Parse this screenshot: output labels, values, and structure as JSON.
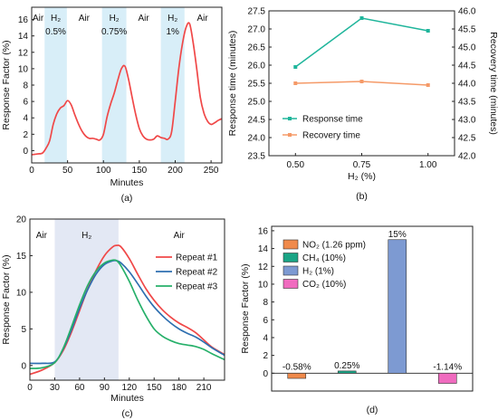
{
  "colors": {
    "highlight_a": "#d8eef8",
    "highlight_c": "#e3e8f4",
    "red": "#f04848",
    "teal": "#1fb59b",
    "orange": "#f59a68",
    "blue": "#2e6fb0",
    "green": "#27b06a"
  },
  "chart_data": [
    {
      "id": "a",
      "type": "line",
      "caption": "(a)",
      "xlabel": "Minutes",
      "ylabel": "Response Factor (%)",
      "xlim": [
        0,
        265
      ],
      "ylim": [
        -1.5,
        17.5
      ],
      "xticks": [
        0,
        50,
        100,
        150,
        200,
        250
      ],
      "yticks": [
        0,
        2,
        4,
        6,
        8,
        10,
        12,
        14,
        16
      ],
      "bands": [
        {
          "x0": 18,
          "x1": 49,
          "label": "H₂",
          "sublabel": "0.5%"
        },
        {
          "x0": 98,
          "x1": 132,
          "label": "H₂",
          "sublabel": "0.75%"
        },
        {
          "x0": 180,
          "x1": 213,
          "label": "H₂",
          "sublabel": "1%"
        }
      ],
      "air_labels": [
        {
          "x": 9,
          "label": "Air"
        },
        {
          "x": 73,
          "label": "Air"
        },
        {
          "x": 156,
          "label": "Air"
        },
        {
          "x": 238,
          "label": "Air"
        }
      ],
      "series": [
        {
          "color": "#f04848",
          "x": [
            0,
            8,
            15,
            20,
            25,
            30,
            35,
            40,
            45,
            50,
            55,
            60,
            65,
            70,
            75,
            80,
            85,
            90,
            95,
            100,
            105,
            110,
            115,
            120,
            125,
            130,
            135,
            140,
            145,
            150,
            155,
            160,
            165,
            170,
            175,
            180,
            185,
            190,
            195,
            200,
            205,
            210,
            215,
            220,
            225,
            230,
            235,
            240,
            245,
            250,
            255,
            260,
            265
          ],
          "values": [
            -0.5,
            -0.4,
            -0.3,
            0.3,
            1.2,
            3.2,
            4.5,
            5.2,
            5.5,
            6.1,
            5.6,
            4.4,
            3.3,
            2.4,
            1.8,
            1.5,
            1.5,
            1.4,
            1.3,
            2.0,
            4.1,
            5.7,
            7.0,
            8.6,
            10.0,
            10.3,
            8.7,
            6.5,
            4.4,
            2.7,
            1.8,
            1.4,
            1.3,
            1.4,
            1.8,
            1.6,
            1.5,
            1.4,
            2.3,
            6.0,
            10.0,
            13.0,
            15.0,
            15.5,
            13.2,
            10.0,
            6.5,
            4.6,
            3.6,
            3.2,
            3.4,
            3.7,
            3.9
          ]
        }
      ]
    },
    {
      "id": "b",
      "type": "line",
      "caption": "(b)",
      "xlabel": "H₂ (%)",
      "ylabel": "Response time (minutes)",
      "ylabel_right": "Recovery time (minutes)",
      "xlim": [
        0.4,
        1.1
      ],
      "ylim": [
        23.5,
        27.5
      ],
      "ylim_right": [
        42.0,
        46.0
      ],
      "xticks": [
        0.5,
        0.75,
        1.0
      ],
      "xtick_labels": [
        "0.50",
        "0.75",
        "1.00"
      ],
      "yticks": [
        23.5,
        24.0,
        24.5,
        25.0,
        25.5,
        26.0,
        26.5,
        27.0,
        27.5
      ],
      "yticks_right": [
        42.0,
        42.5,
        43.0,
        43.5,
        44.0,
        44.5,
        45.0,
        45.5,
        46.0
      ],
      "legend_position": "center-right",
      "series": [
        {
          "name": "Response time",
          "axis": "left",
          "color": "#1fb59b",
          "x": [
            0.5,
            0.75,
            1.0
          ],
          "values": [
            25.95,
            27.3,
            26.95
          ]
        },
        {
          "name": "Recovery time",
          "axis": "right",
          "color": "#f59a68",
          "x": [
            0.5,
            0.75,
            1.0
          ],
          "values": [
            44.0,
            44.05,
            43.95
          ]
        }
      ]
    },
    {
      "id": "c",
      "type": "line",
      "caption": "(c)",
      "xlabel": "Minutes",
      "ylabel": "Response Factor (%)",
      "xlim": [
        0,
        235
      ],
      "ylim": [
        -2,
        20
      ],
      "xticks": [
        0,
        30,
        60,
        90,
        120,
        150,
        180,
        210
      ],
      "yticks": [
        0,
        5,
        10,
        15,
        20
      ],
      "bands": [
        {
          "x0": 30,
          "x1": 107,
          "label": "H₂"
        }
      ],
      "air_labels": [
        {
          "x": 14,
          "label": "Air"
        },
        {
          "x": 180,
          "label": "Air"
        }
      ],
      "legend_position": "top-right",
      "series": [
        {
          "name": "Repeat #1",
          "color": "#f04848",
          "x": [
            0,
            15,
            30,
            40,
            50,
            60,
            70,
            80,
            90,
            100,
            105,
            110,
            120,
            130,
            140,
            150,
            160,
            170,
            180,
            190,
            200,
            210,
            220,
            235
          ],
          "values": [
            -1.2,
            -0.6,
            0.4,
            2.0,
            4.5,
            7.5,
            10.5,
            13.0,
            15.0,
            16.2,
            16.4,
            16.2,
            14.6,
            12.5,
            10.5,
            8.9,
            7.6,
            6.6,
            5.8,
            5.2,
            4.5,
            3.5,
            2.5,
            1.5
          ]
        },
        {
          "name": "Repeat #2",
          "color": "#2e6fb0",
          "x": [
            0,
            15,
            30,
            40,
            50,
            60,
            70,
            80,
            90,
            100,
            105,
            110,
            120,
            130,
            140,
            150,
            160,
            170,
            180,
            190,
            200,
            210,
            220,
            235
          ],
          "values": [
            0.3,
            0.3,
            0.5,
            2.2,
            4.8,
            7.8,
            10.4,
            12.5,
            13.8,
            14.3,
            14.3,
            14.0,
            12.8,
            11.2,
            9.5,
            8.0,
            6.8,
            5.8,
            5.0,
            4.4,
            3.9,
            3.2,
            2.4,
            1.4
          ]
        },
        {
          "name": "Repeat #3",
          "color": "#27b06a",
          "x": [
            0,
            15,
            30,
            40,
            50,
            60,
            70,
            80,
            90,
            100,
            105,
            110,
            120,
            130,
            140,
            150,
            160,
            170,
            180,
            190,
            200,
            210,
            220,
            235
          ],
          "values": [
            -0.4,
            -0.3,
            0.4,
            2.3,
            5.2,
            8.3,
            11.0,
            12.9,
            14.0,
            14.4,
            14.3,
            13.6,
            11.5,
            9.0,
            6.8,
            5.0,
            4.0,
            3.4,
            3.0,
            2.8,
            2.6,
            2.2,
            1.6,
            0.8
          ]
        }
      ]
    },
    {
      "id": "d",
      "type": "bar",
      "caption": "(d)",
      "ylabel": "Response Factor (%)",
      "ylim": [
        -2,
        16.5
      ],
      "yticks": [
        0,
        2,
        4,
        6,
        8,
        10,
        12,
        14,
        16
      ],
      "legend_position": "top-left",
      "categories": [
        "NO₂ (1.26 ppm)",
        "CH₄ (10%)",
        "H₂ (1%)",
        "CO₂ (10%)"
      ],
      "values": [
        -0.58,
        0.25,
        15,
        -1.14
      ],
      "data_labels": [
        "-0.58%",
        "0.25%",
        "15%",
        "-1.14%"
      ],
      "colors": [
        "#f08a4b",
        "#1aa485",
        "#7d9ad2",
        "#f06bbf"
      ]
    }
  ]
}
